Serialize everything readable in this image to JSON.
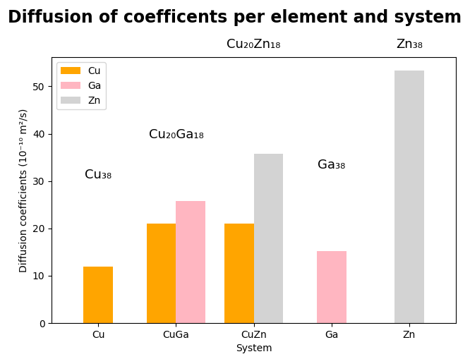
{
  "chart_data": {
    "type": "bar",
    "title": "Diffusion of coefficents per element and system",
    "x_label": "System",
    "y_label": "Diffusion coefficients (10⁻¹⁰ m²/s)",
    "categories": [
      "Cu",
      "CuGa",
      "CuZn",
      "Ga",
      "Zn"
    ],
    "series": [
      {
        "name": "Cu",
        "color": "#FFA500",
        "values": [
          12.0,
          21.0,
          21.0,
          null,
          null
        ]
      },
      {
        "name": "Ga",
        "color": "#FFB6C1",
        "values": [
          null,
          25.8,
          null,
          15.2,
          null
        ]
      },
      {
        "name": "Zn",
        "color": "#D3D3D3",
        "values": [
          null,
          null,
          35.8,
          null,
          53.4
        ]
      }
    ],
    "ylim": [
      0,
      56.1
    ],
    "yticks": [
      0,
      10,
      20,
      30,
      40,
      50
    ],
    "legend": "upper left",
    "annotations": [
      "Cu₃₈",
      "Cu₂₀Ga₁₈",
      "Cu₂₀Zn₁₈",
      "Ga₃₈",
      "Zn₃₈"
    ]
  }
}
